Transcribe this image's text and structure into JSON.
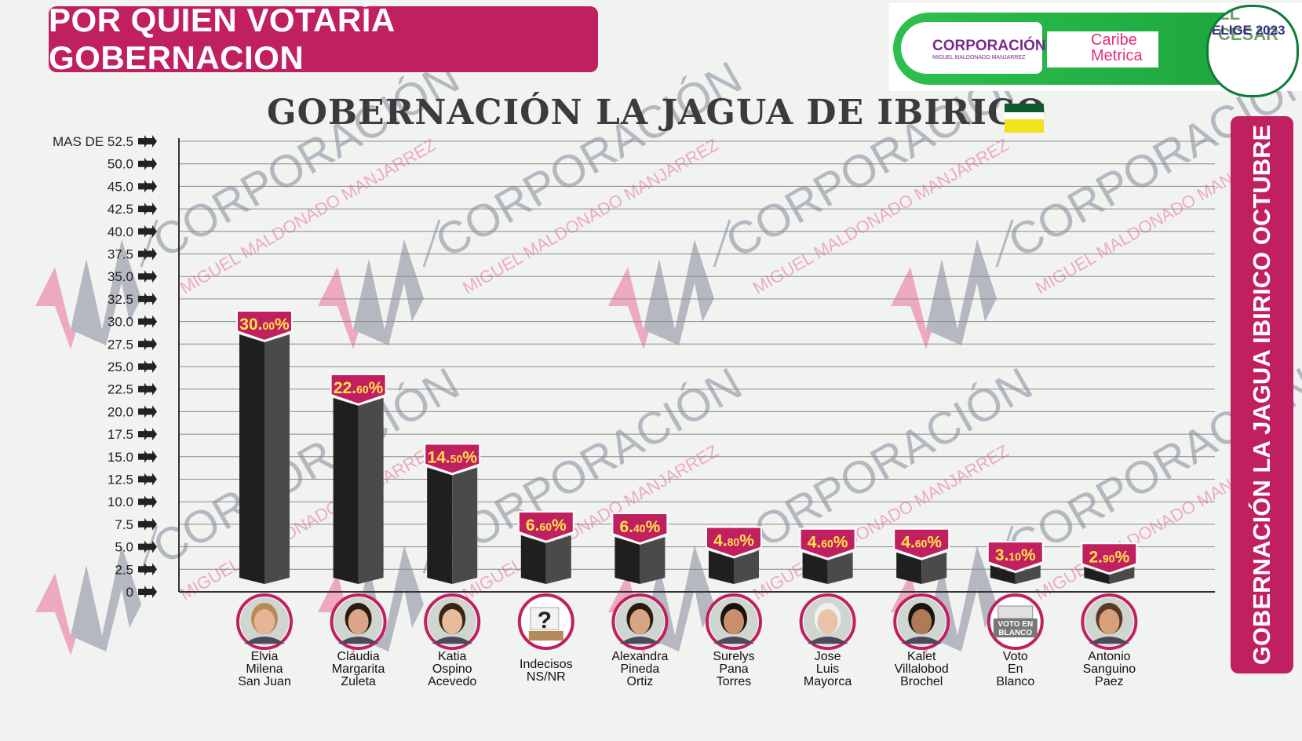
{
  "header": {
    "title": "POR QUIEN VOTARÍA GOBERNACION",
    "logo_corporacion": "CORPORACIÓN",
    "logo_corporacion_sub": "MIGUEL MALDONADO MANJARREZ",
    "logo_caribe": "Caribe",
    "logo_metrica": "Metrica",
    "seal_line1": "EL CESAR",
    "seal_line2": "ELIGE 2023"
  },
  "watermark": {
    "text": "CORPORACIÓN",
    "subtext": "MIGUEL MALDONADO MANJARREZ"
  },
  "side_label": "GOBERNACIÓN LA JAGUA IBIRICO OCTUBRE",
  "colors": {
    "accent": "#c0205f",
    "bar_front": "#1f1f1f",
    "bar_side": "#4a4a4a",
    "label_text": "#ffe34a",
    "flag_green": "#0e5a2a",
    "flag_white": "#ffffff",
    "flag_yellow": "#f2e21c"
  },
  "chart_data": {
    "type": "bar",
    "title": "GOBERNACIÓN LA JAGUA DE IBIRICO",
    "yticks": [
      "0",
      "2.5",
      "5.0",
      "7.5",
      "10.0",
      "12.5",
      "15.0",
      "17.5",
      "20.0",
      "22.5",
      "25.0",
      "27.5",
      "30.0",
      "32.5",
      "35.0",
      "37.5",
      "40.0",
      "42.5",
      "45.0",
      "50.0",
      "MAS DE 52.5"
    ],
    "ytick_values": [
      0,
      2.5,
      5,
      7.5,
      10,
      12.5,
      15,
      17.5,
      20,
      22.5,
      25,
      27.5,
      30,
      32.5,
      35,
      37.5,
      40,
      42.5,
      45,
      50,
      52.5
    ],
    "ylim": [
      0,
      52.5
    ],
    "grid": true,
    "categories": [
      [
        "Elvia",
        "Milena",
        "San Juan"
      ],
      [
        "Claudia",
        "Margarita",
        "Zuleta"
      ],
      [
        "Katia",
        "Ospino",
        "Acevedo"
      ],
      [
        "Indecisos",
        "NS/NR"
      ],
      [
        "Alexandra",
        "Pineda",
        "Ortiz"
      ],
      [
        "Surelys",
        "Pana",
        "Torres"
      ],
      [
        "Jose",
        "Luis",
        "Mayorca"
      ],
      [
        "Kalet",
        "Villalobod",
        "Brochel"
      ],
      [
        "Voto",
        "En",
        "Blanco"
      ],
      [
        "Antonio",
        "Sanguino",
        "Paez"
      ]
    ],
    "values": [
      30.0,
      22.6,
      14.5,
      6.6,
      6.4,
      4.8,
      4.6,
      4.6,
      3.1,
      2.9
    ],
    "value_labels": [
      [
        "30.",
        "00",
        "%"
      ],
      [
        "22.",
        "60",
        "%"
      ],
      [
        "14.",
        "50",
        "%"
      ],
      [
        "6.",
        "60",
        "%"
      ],
      [
        "6.",
        "40",
        "%"
      ],
      [
        "4.",
        "80",
        "%"
      ],
      [
        "4.",
        "60",
        "%"
      ],
      [
        "4.",
        "60",
        "%"
      ],
      [
        "3.",
        "10",
        "%"
      ],
      [
        "2.",
        "90",
        "%"
      ]
    ],
    "avatar_icons": [
      "person-photo",
      "person-photo",
      "person-photo",
      "question-ballot-icon",
      "person-photo",
      "person-photo",
      "person-photo",
      "person-photo",
      "ballot-box-icon",
      "person-photo"
    ],
    "avatar_texts": [
      "",
      "",
      "",
      "?",
      "",
      "",
      "",
      "",
      "VOTO EN BLANCO",
      ""
    ]
  }
}
